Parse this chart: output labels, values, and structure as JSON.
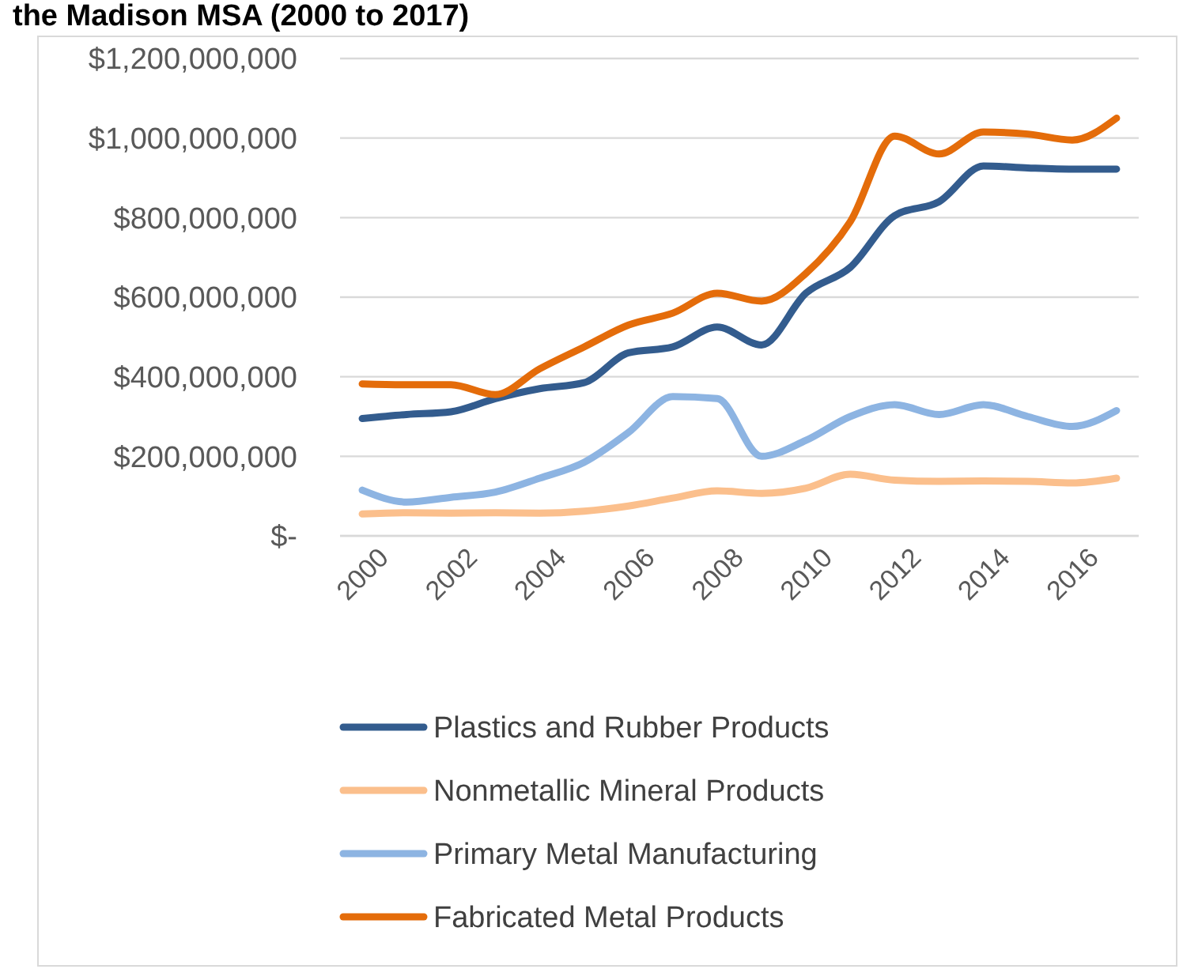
{
  "chart_data": {
    "type": "line",
    "title": "the Madison MSA (2000 to 2017)",
    "x": [
      2000,
      2001,
      2002,
      2003,
      2004,
      2005,
      2006,
      2007,
      2008,
      2009,
      2010,
      2011,
      2012,
      2013,
      2014,
      2015,
      2016,
      2017
    ],
    "series": [
      {
        "name": "Plastics and Rubber Products",
        "color": "#335c8e",
        "values": [
          295000000,
          305000000,
          312000000,
          345000000,
          370000000,
          385000000,
          460000000,
          475000000,
          525000000,
          480000000,
          610000000,
          675000000,
          805000000,
          840000000,
          930000000,
          925000000,
          922000000,
          922000000
        ]
      },
      {
        "name": "Nonmetallic Mineral Products",
        "color": "#fbbf8c",
        "values": [
          55000000,
          58000000,
          57000000,
          58000000,
          57000000,
          62000000,
          75000000,
          95000000,
          113000000,
          107000000,
          120000000,
          155000000,
          140000000,
          137000000,
          138000000,
          137000000,
          133000000,
          145000000
        ]
      },
      {
        "name": "Primary Metal Manufacturing",
        "color": "#8db4e2",
        "values": [
          115000000,
          85000000,
          97000000,
          110000000,
          145000000,
          185000000,
          260000000,
          350000000,
          345000000,
          200000000,
          240000000,
          300000000,
          330000000,
          305000000,
          330000000,
          300000000,
          275000000,
          315000000
        ]
      },
      {
        "name": "Fabricated Metal Products",
        "color": "#e46c0a",
        "values": [
          382000000,
          380000000,
          380000000,
          355000000,
          420000000,
          475000000,
          530000000,
          560000000,
          610000000,
          590000000,
          660000000,
          790000000,
          1005000000,
          960000000,
          1015000000,
          1010000000,
          995000000,
          1050000000
        ]
      }
    ],
    "xlim": [
      1999.5,
      2017.5
    ],
    "xticks": [
      2000,
      2002,
      2004,
      2006,
      2008,
      2010,
      2012,
      2014,
      2016
    ],
    "ylim": [
      0,
      1200000000
    ],
    "yticks": [
      {
        "value": 0,
        "label": "$-"
      },
      {
        "value": 200000000,
        "label": "$200,000,000"
      },
      {
        "value": 400000000,
        "label": "$400,000,000"
      },
      {
        "value": 600000000,
        "label": "$600,000,000"
      },
      {
        "value": 800000000,
        "label": "$800,000,000"
      },
      {
        "value": 1000000000,
        "label": "$1,000,000,000"
      },
      {
        "value": 1200000000,
        "label": "$1,200,000,000"
      }
    ],
    "grid": "y",
    "legend": "bottom",
    "line_style": "solid",
    "marker": "none"
  }
}
